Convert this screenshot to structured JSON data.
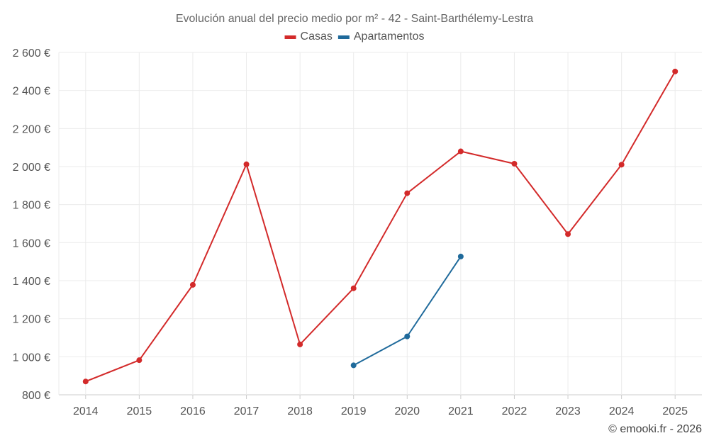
{
  "chart_data": {
    "type": "line",
    "title": "Evolución anual del precio medio por m² - 42 - Saint-Barthélemy-Lestra",
    "x": [
      "2014",
      "2015",
      "2016",
      "2017",
      "2018",
      "2019",
      "2020",
      "2021",
      "2022",
      "2023",
      "2024",
      "2025"
    ],
    "series": [
      {
        "name": "Casas",
        "color": "#d32a2a",
        "values": [
          870,
          982,
          1378,
          2012,
          1065,
          1360,
          1860,
          2080,
          2015,
          1645,
          2010,
          2500
        ]
      },
      {
        "name": "Apartamentos",
        "color": "#1f6a9b",
        "values": [
          null,
          null,
          null,
          null,
          null,
          955,
          1107,
          1527,
          null,
          null,
          null,
          null
        ]
      }
    ],
    "ylim": [
      800,
      2600
    ],
    "yticks": [
      800,
      1000,
      1200,
      1400,
      1600,
      1800,
      2000,
      2200,
      2400,
      2600
    ],
    "ytick_labels": [
      "800 €",
      "1 000 €",
      "1 200 €",
      "1 400 €",
      "1 600 €",
      "1 800 €",
      "2 000 €",
      "2 200 €",
      "2 400 €",
      "2 600 €"
    ],
    "xlabel": "",
    "ylabel": "",
    "grid": true,
    "legend_position": "top-center"
  },
  "credit": "© emooki.fr - 2026"
}
